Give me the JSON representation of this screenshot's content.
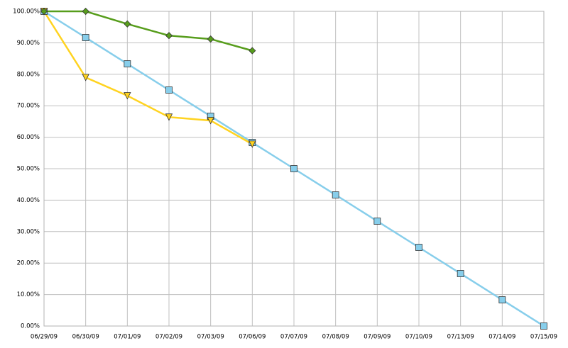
{
  "chart_data": {
    "type": "line",
    "categories": [
      "06/29/09",
      "06/30/09",
      "07/01/09",
      "07/02/09",
      "07/03/09",
      "07/06/09",
      "07/07/09",
      "07/08/09",
      "07/09/09",
      "07/10/09",
      "07/13/09",
      "07/14/09",
      "07/15/09"
    ],
    "series": [
      {
        "color": "#87ceeb",
        "marker": "square",
        "values": [
          100,
          91.67,
          83.33,
          75,
          66.67,
          58.33,
          50,
          41.67,
          33.33,
          25,
          16.67,
          8.33,
          0
        ]
      },
      {
        "color": "#ffd320",
        "marker": "triangle-down",
        "values": [
          100,
          79,
          73.2,
          66.4,
          65.3,
          57.8,
          null,
          null,
          null,
          null,
          null,
          null,
          null
        ]
      },
      {
        "color": "#579d1c",
        "marker": "diamond",
        "values": [
          100,
          100,
          96,
          92.3,
          91.2,
          87.5,
          null,
          null,
          null,
          null,
          null,
          null,
          null
        ]
      }
    ],
    "ylim": [
      0,
      100
    ],
    "yticks": [
      {
        "value": 0,
        "label": "0.00%"
      },
      {
        "value": 10,
        "label": "10.00%"
      },
      {
        "value": 20,
        "label": "20.00%"
      },
      {
        "value": 30,
        "label": "30.00%"
      },
      {
        "value": 40,
        "label": "40.00%"
      },
      {
        "value": 50,
        "label": "50.00%"
      },
      {
        "value": 60,
        "label": "60.00%"
      },
      {
        "value": 70,
        "label": "70.00%"
      },
      {
        "value": 80,
        "label": "80.00%"
      },
      {
        "value": 90,
        "label": "90.00%"
      },
      {
        "value": 100,
        "label": "100.00%"
      }
    ],
    "grid": true
  }
}
